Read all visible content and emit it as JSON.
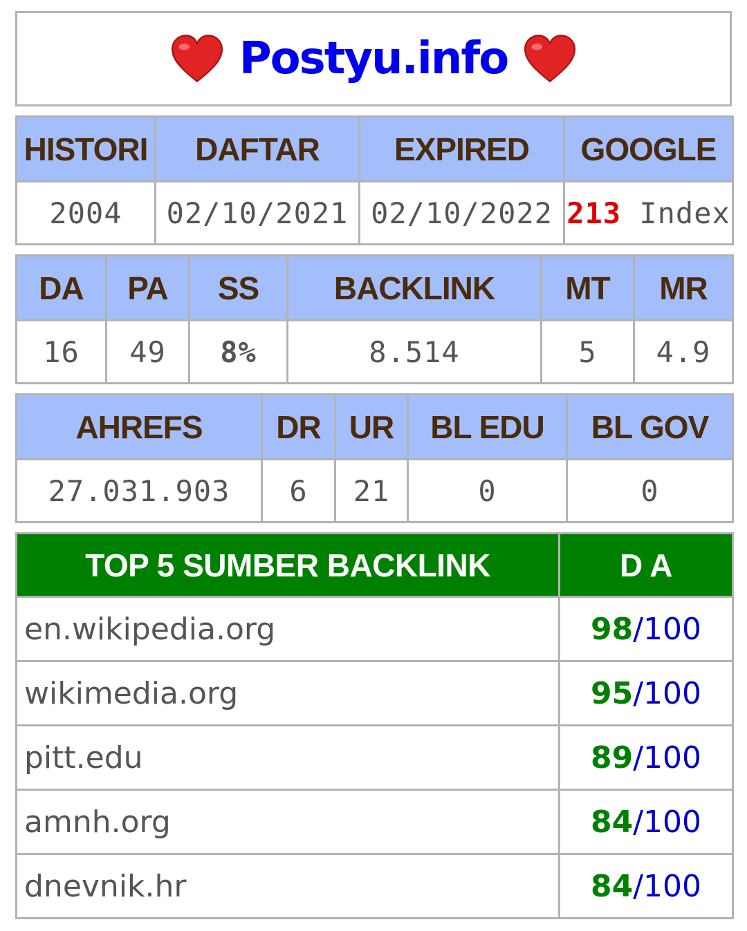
{
  "title": "Postyu.info",
  "icons": {
    "left": "heart-icon",
    "right": "heart-icon"
  },
  "colors": {
    "header_bg": "#a4bdfb",
    "header_text": "#4a2b0c",
    "green_header_bg": "#008000",
    "title_color": "#0000ee",
    "index_count_color": "#e00000",
    "score_color": "#008000",
    "max_color": "#0000cc"
  },
  "domain_info": {
    "headers": [
      "HISTORI",
      "DAFTAR",
      "EXPIRED",
      "GOOGLE"
    ],
    "historii": "2004",
    "daftar": "02/10/2021",
    "expired": "02/10/2022",
    "google_count": "213",
    "google_label": "Index"
  },
  "moz": {
    "headers": [
      "DA",
      "PA",
      "SS",
      "BACKLINK",
      "MT",
      "MR"
    ],
    "values": [
      "16",
      "49",
      "8%",
      "8.514",
      "5",
      "4.9"
    ]
  },
  "ahrefs": {
    "headers": [
      "AHREFS",
      "DR",
      "UR",
      "BL EDU",
      "BL GOV"
    ],
    "values": [
      "27.031.903",
      "6",
      "21",
      "0",
      "0"
    ]
  },
  "backlinks": {
    "header_source": "TOP 5 SUMBER BACKLINK",
    "header_da": "D A",
    "max": "/100",
    "rows": [
      {
        "source": "en.wikipedia.org",
        "da": "98"
      },
      {
        "source": "wikimedia.org",
        "da": "95"
      },
      {
        "source": "pitt.edu",
        "da": "89"
      },
      {
        "source": "amnh.org",
        "da": "84"
      },
      {
        "source": "dnevnik.hr",
        "da": "84"
      }
    ]
  }
}
